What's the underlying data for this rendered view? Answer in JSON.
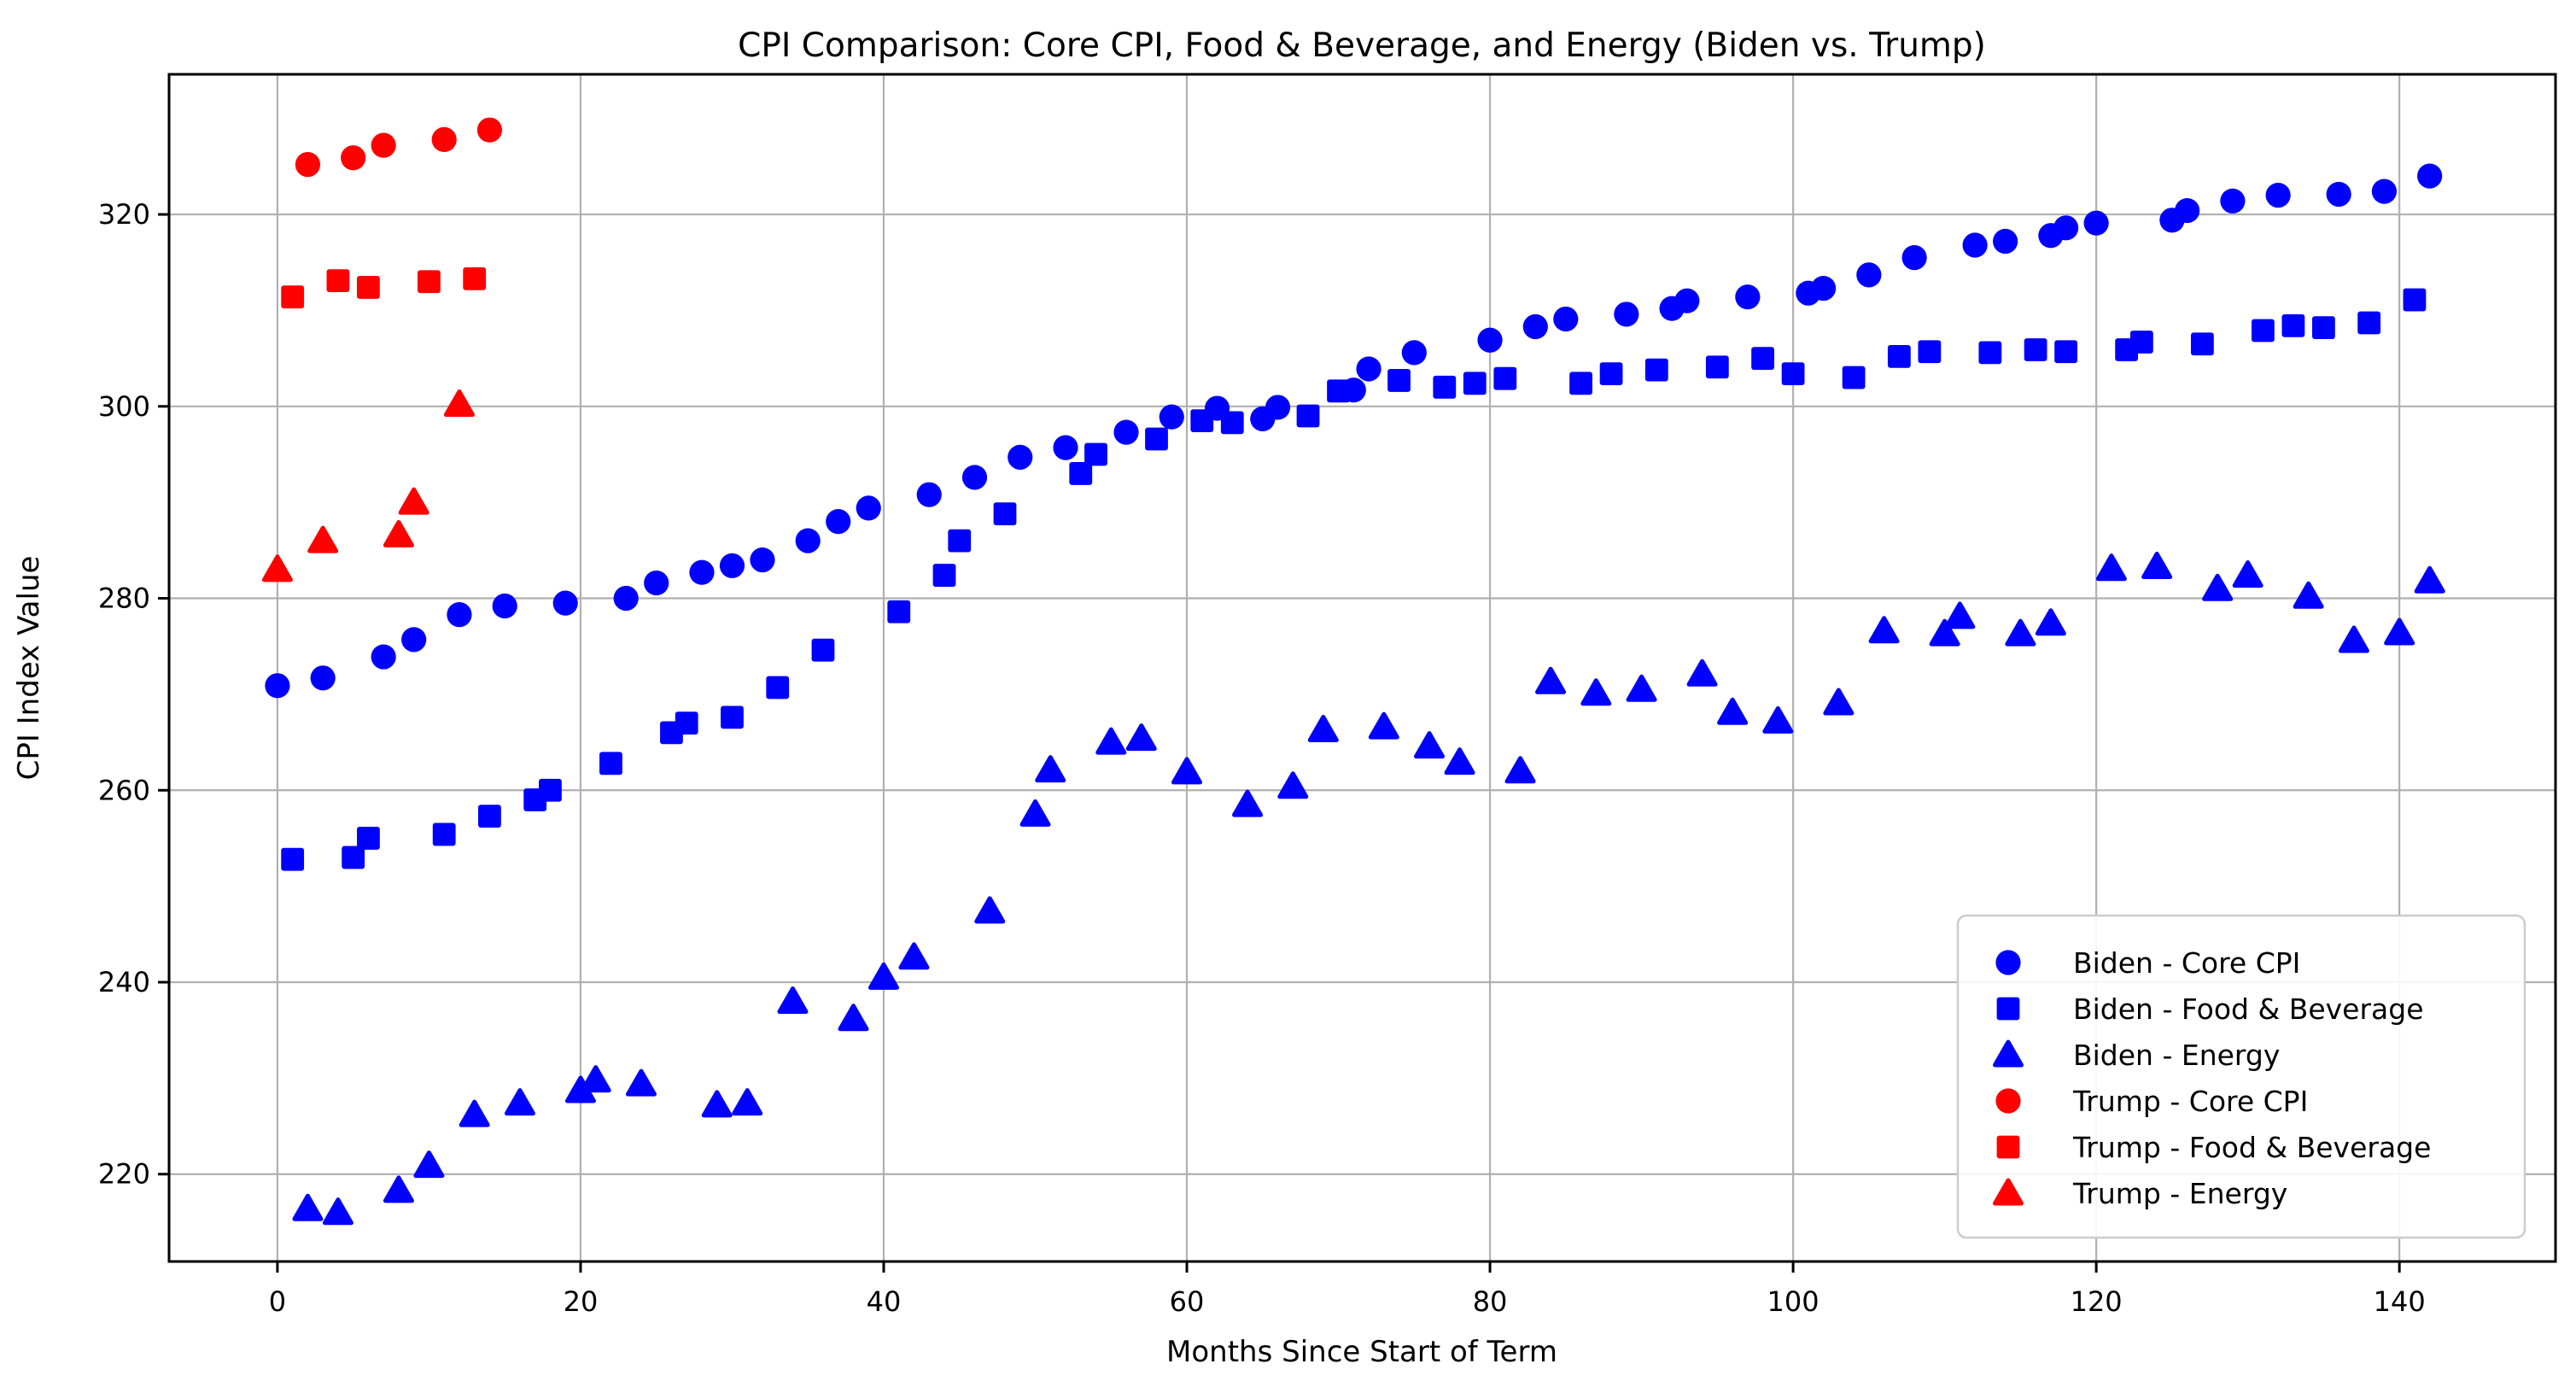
{
  "chart_data": {
    "type": "scatter",
    "title": "CPI Comparison: Core CPI, Food & Beverage, and Energy (Biden vs. Trump)",
    "xlabel": "Months Since Start of Term",
    "ylabel": "CPI Index Value",
    "xlim": [
      -7.15,
      150.3
    ],
    "ylim": [
      210.9,
      334.6
    ],
    "xticks": [
      0,
      20,
      40,
      60,
      80,
      100,
      120,
      140
    ],
    "yticks": [
      220,
      240,
      260,
      280,
      300,
      320
    ],
    "grid": true,
    "grid_color": "#b0b0b0",
    "background_color": "#ffffff",
    "legend_position": "lower right",
    "series": [
      {
        "name": "Biden - Core CPI",
        "color": "#0000ff",
        "marker": "circle",
        "points": [
          [
            0,
            270.9
          ],
          [
            3,
            271.7
          ],
          [
            7,
            273.9
          ],
          [
            9,
            275.7
          ],
          [
            12,
            278.3
          ],
          [
            15,
            279.2
          ],
          [
            19,
            279.5
          ],
          [
            23,
            280
          ],
          [
            25,
            281.6
          ],
          [
            28,
            282.7
          ],
          [
            30,
            283.4
          ],
          [
            32,
            284
          ],
          [
            35,
            286
          ],
          [
            37,
            288
          ],
          [
            39,
            289.4
          ],
          [
            43,
            290.8
          ],
          [
            46,
            292.6
          ],
          [
            49,
            294.7
          ],
          [
            52,
            295.7
          ],
          [
            56,
            297.3
          ],
          [
            59,
            298.9
          ],
          [
            62,
            299.8
          ],
          [
            65,
            298.7
          ],
          [
            66,
            299.9
          ],
          [
            71,
            301.7
          ],
          [
            72,
            303.9
          ],
          [
            75,
            305.6
          ],
          [
            80,
            306.9
          ],
          [
            83,
            308.3
          ],
          [
            85,
            309.1
          ],
          [
            89,
            309.6
          ],
          [
            92,
            310.2
          ],
          [
            93,
            311
          ],
          [
            97,
            311.4
          ],
          [
            101,
            311.8
          ],
          [
            102,
            312.3
          ],
          [
            105,
            313.7
          ],
          [
            108,
            315.5
          ],
          [
            112,
            316.8
          ],
          [
            114,
            317.2
          ],
          [
            117,
            317.8
          ],
          [
            118,
            318.6
          ],
          [
            120,
            319.1
          ],
          [
            125,
            319.4
          ],
          [
            126,
            320.4
          ],
          [
            129,
            321.4
          ],
          [
            132,
            322
          ],
          [
            136,
            322.1
          ],
          [
            139,
            322.4
          ],
          [
            142,
            324
          ]
        ]
      },
      {
        "name": "Biden - Food & Beverage",
        "color": "#0000ff",
        "marker": "square",
        "points": [
          [
            1,
            252.8
          ],
          [
            5,
            253
          ],
          [
            6,
            255
          ],
          [
            11,
            255.4
          ],
          [
            14,
            257.3
          ],
          [
            17,
            259
          ],
          [
            18,
            260
          ],
          [
            22,
            262.8
          ],
          [
            26,
            266
          ],
          [
            27,
            267
          ],
          [
            30,
            267.6
          ],
          [
            33,
            270.7
          ],
          [
            36,
            274.6
          ],
          [
            41,
            278.6
          ],
          [
            44,
            282.4
          ],
          [
            45,
            286
          ],
          [
            48,
            288.8
          ],
          [
            53,
            293
          ],
          [
            54,
            295
          ],
          [
            58,
            296.6
          ],
          [
            61,
            298.5
          ],
          [
            63,
            298.3
          ],
          [
            68,
            299
          ],
          [
            70,
            301.6
          ],
          [
            74,
            302.7
          ],
          [
            77,
            302
          ],
          [
            79,
            302.4
          ],
          [
            81,
            302.9
          ],
          [
            86,
            302.4
          ],
          [
            88,
            303.4
          ],
          [
            91,
            303.8
          ],
          [
            95,
            304.1
          ],
          [
            98,
            305
          ],
          [
            100,
            303.4
          ],
          [
            104,
            303
          ],
          [
            107,
            305.2
          ],
          [
            109,
            305.7
          ],
          [
            113,
            305.6
          ],
          [
            116,
            305.9
          ],
          [
            118,
            305.7
          ],
          [
            122,
            305.9
          ],
          [
            123,
            306.7
          ],
          [
            127,
            306.5
          ],
          [
            131,
            307.9
          ],
          [
            133,
            308.4
          ],
          [
            135,
            308.2
          ],
          [
            138,
            308.7
          ],
          [
            141,
            311.1
          ]
        ]
      },
      {
        "name": "Biden - Energy",
        "color": "#0000ff",
        "marker": "triangle",
        "points": [
          [
            2,
            216.4
          ],
          [
            4,
            216
          ],
          [
            8,
            218.3
          ],
          [
            10,
            220.9
          ],
          [
            13,
            226.2
          ],
          [
            16,
            227.4
          ],
          [
            20,
            228.7
          ],
          [
            21,
            229.8
          ],
          [
            24,
            229.4
          ],
          [
            29,
            227.2
          ],
          [
            31,
            227.4
          ],
          [
            34,
            238
          ],
          [
            38,
            236.2
          ],
          [
            40,
            240.5
          ],
          [
            42,
            242.6
          ],
          [
            47,
            247.4
          ],
          [
            50,
            257.5
          ],
          [
            51,
            262.1
          ],
          [
            55,
            265
          ],
          [
            57,
            265.4
          ],
          [
            60,
            261.9
          ],
          [
            64,
            258.5
          ],
          [
            67,
            260.4
          ],
          [
            69,
            266.3
          ],
          [
            73,
            266.6
          ],
          [
            76,
            264.6
          ],
          [
            78,
            262.9
          ],
          [
            82,
            262
          ],
          [
            84,
            271.3
          ],
          [
            87,
            270.1
          ],
          [
            90,
            270.5
          ],
          [
            94,
            272.1
          ],
          [
            96,
            268.1
          ],
          [
            99,
            267.2
          ],
          [
            103,
            269.1
          ],
          [
            106,
            276.6
          ],
          [
            110,
            276.3
          ],
          [
            111,
            278.1
          ],
          [
            115,
            276.3
          ],
          [
            117,
            277.4
          ],
          [
            121,
            283.1
          ],
          [
            124,
            283.3
          ],
          [
            128,
            281
          ],
          [
            130,
            282.4
          ],
          [
            134,
            280.2
          ],
          [
            137,
            275.6
          ],
          [
            140,
            276.4
          ],
          [
            142,
            281.8
          ]
        ]
      },
      {
        "name": "Trump - Core CPI",
        "color": "#ff0000",
        "marker": "circle",
        "points": [
          [
            2,
            325.2
          ],
          [
            5,
            325.9
          ],
          [
            7,
            327.2
          ],
          [
            11,
            327.8
          ],
          [
            14,
            328.8
          ]
        ]
      },
      {
        "name": "Trump - Food & Beverage",
        "color": "#ff0000",
        "marker": "square",
        "points": [
          [
            1,
            311.4
          ],
          [
            4,
            313.1
          ],
          [
            6,
            312.4
          ],
          [
            10,
            313
          ],
          [
            13,
            313.3
          ]
        ]
      },
      {
        "name": "Trump - Energy",
        "color": "#ff0000",
        "marker": "triangle",
        "points": [
          [
            0,
            283
          ],
          [
            3,
            286
          ],
          [
            8,
            286.6
          ],
          [
            9,
            290
          ],
          [
            12,
            300.2
          ]
        ]
      }
    ]
  }
}
